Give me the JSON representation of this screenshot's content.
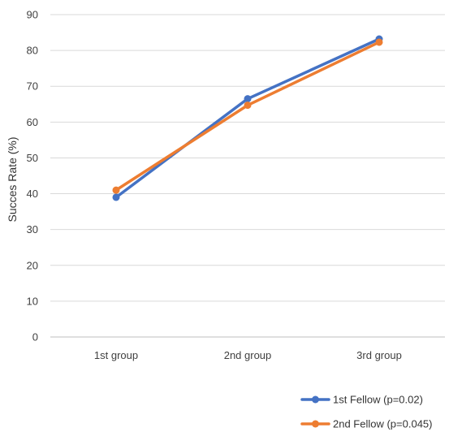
{
  "chart_data": {
    "type": "line",
    "title": "",
    "xlabel": "",
    "ylabel": "Succes Rate (%)",
    "categories": [
      "1st group",
      "2nd group",
      "3rd group"
    ],
    "ylim": [
      0,
      90
    ],
    "yticks": [
      0,
      10,
      20,
      30,
      40,
      50,
      60,
      70,
      80,
      90
    ],
    "grid": true,
    "legend_position": "bottom-right",
    "series": [
      {
        "name": "1st Fellow (p=0.02)",
        "values": [
          39,
          66.5,
          83.2
        ],
        "color": "#4472C4"
      },
      {
        "name": "2nd Fellow (p=0.045)",
        "values": [
          41,
          64.7,
          82.3
        ],
        "color": "#ED7D31"
      }
    ]
  }
}
